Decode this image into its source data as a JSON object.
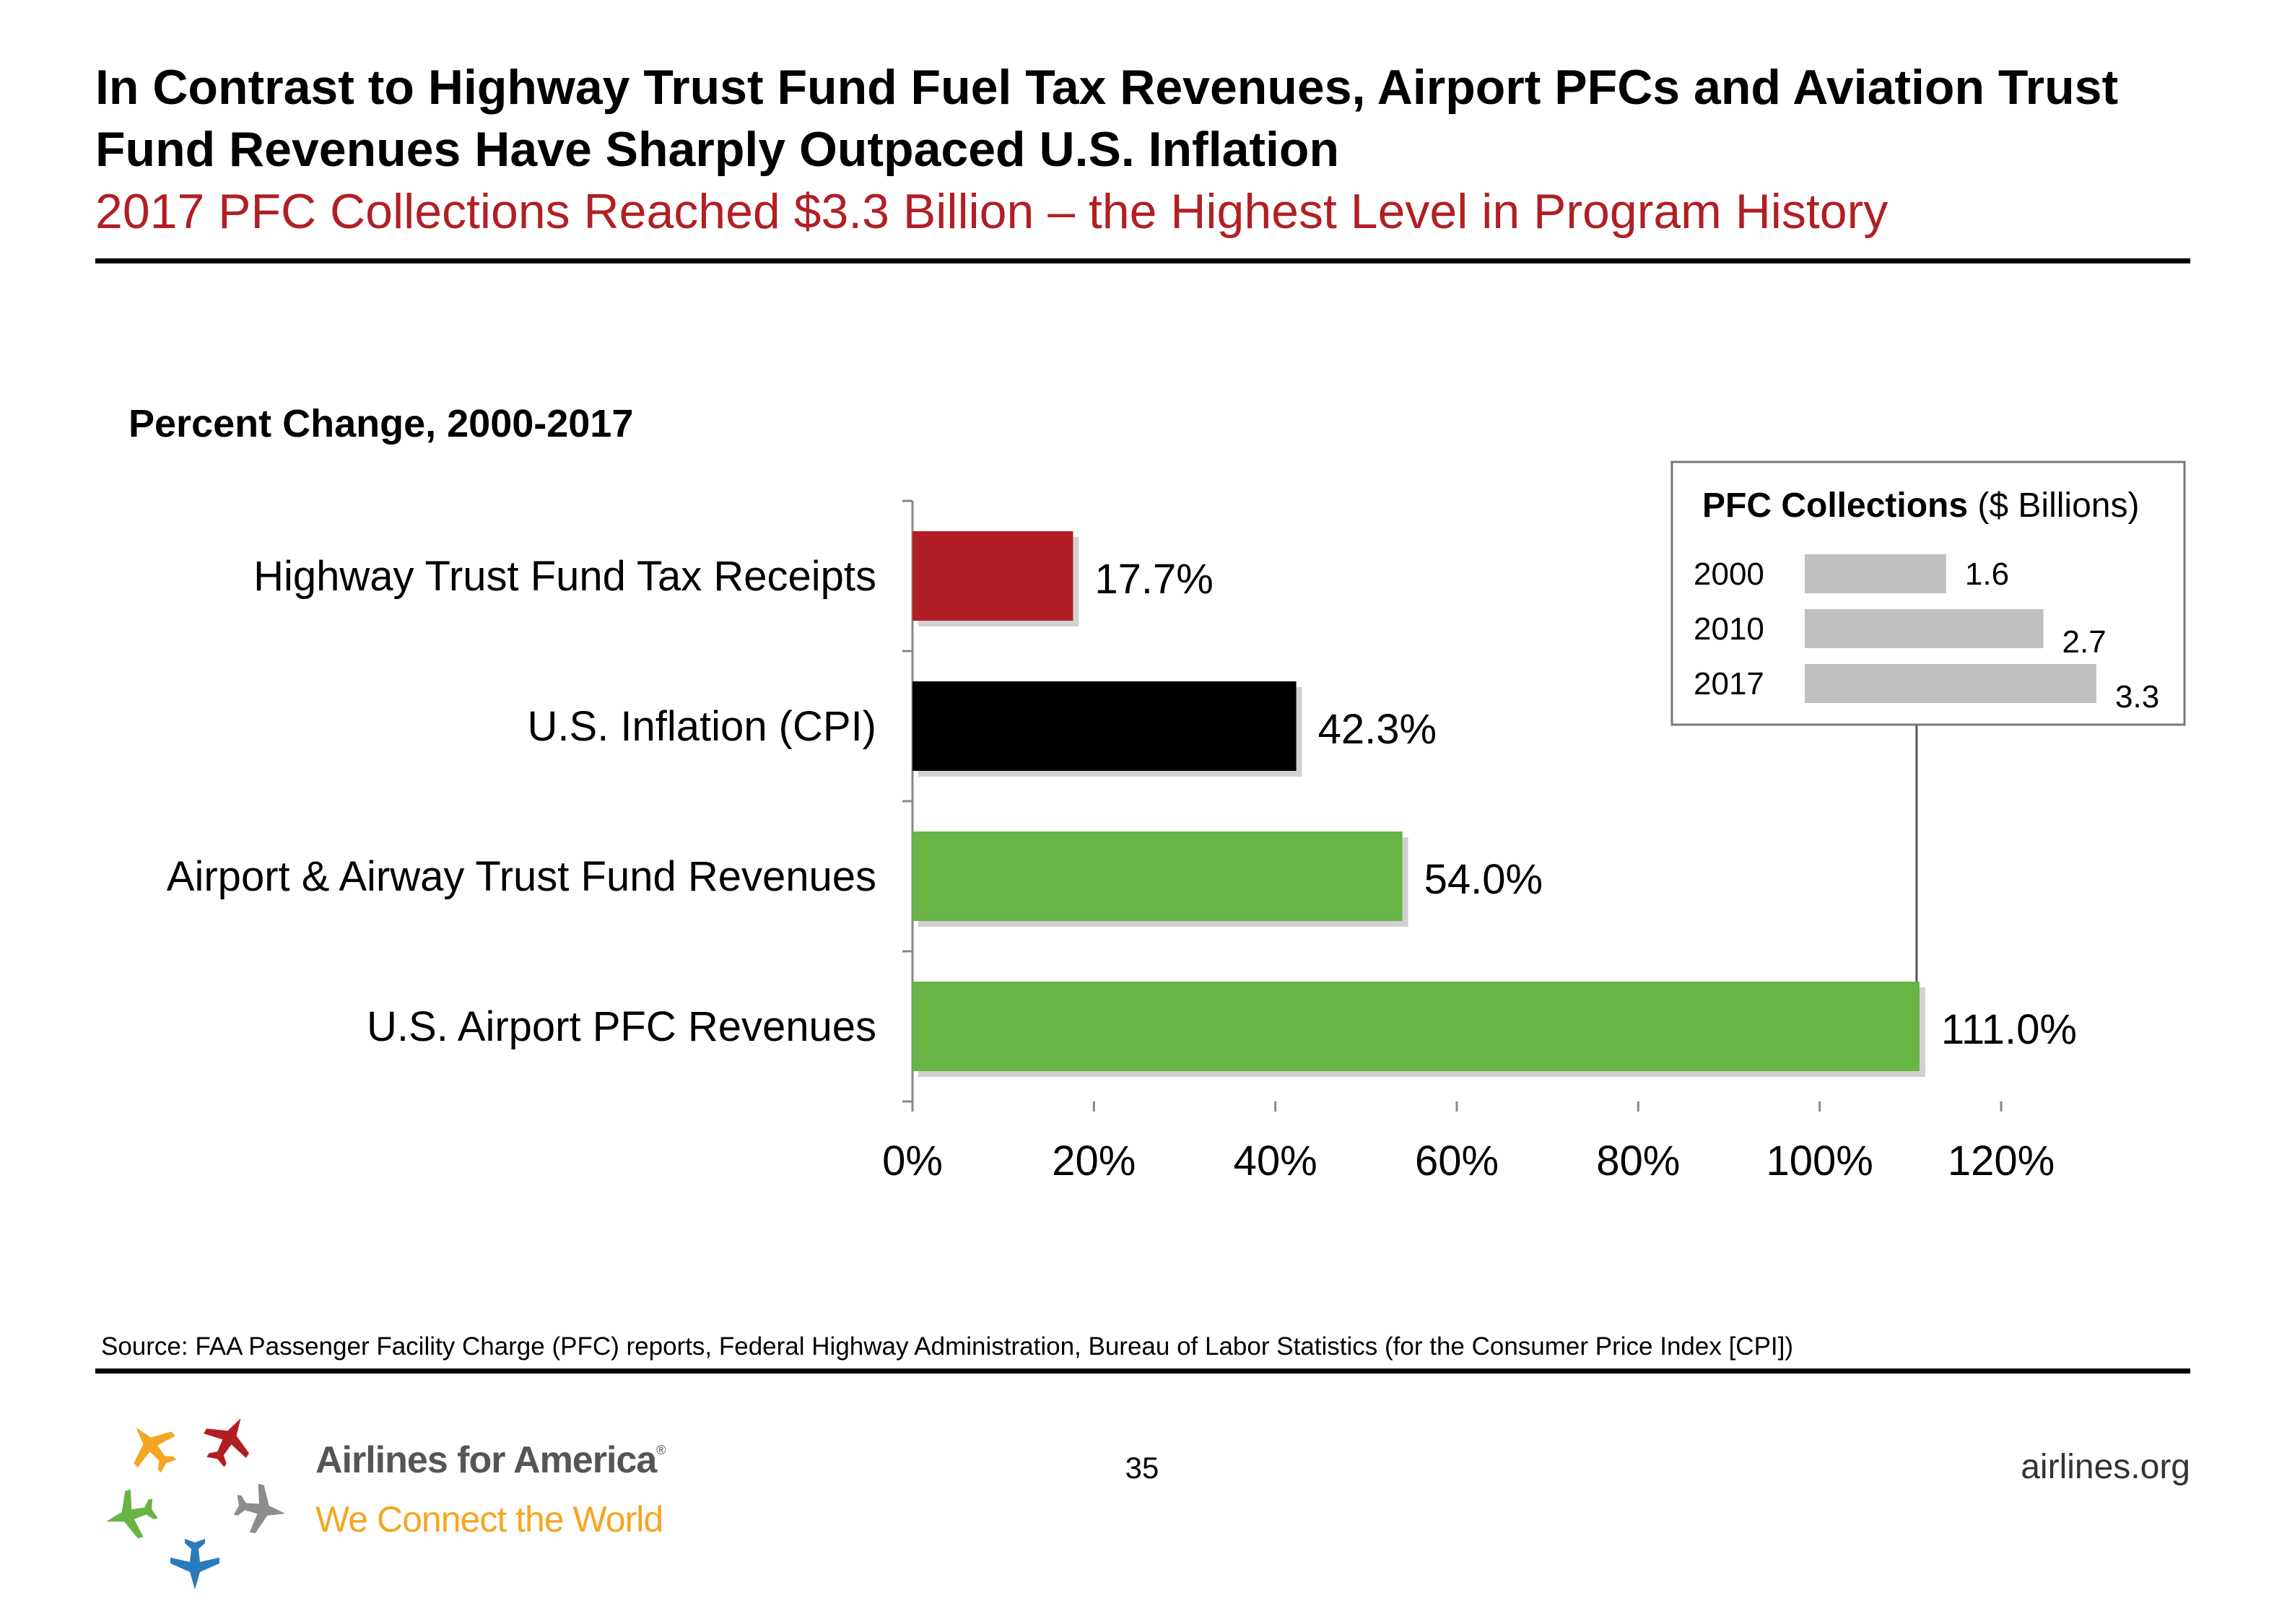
{
  "header": {
    "title": "In Contrast to Highway Trust Fund Fuel Tax Revenues, Airport PFCs and Aviation Trust Fund Revenues Have Sharply Outpaced U.S. Inflation",
    "subtitle": "2017 PFC Collections Reached $3.3 Billion – the Highest Level in Program History"
  },
  "panel_title": "Percent Change, 2000-2017",
  "chart_data": [
    {
      "type": "bar",
      "orientation": "horizontal",
      "title": "Percent Change, 2000-2017",
      "categories": [
        "Highway Trust Fund Tax Receipts",
        "U.S. Inflation (CPI)",
        "Airport & Airway Trust Fund Revenues",
        "U.S. Airport PFC Revenues"
      ],
      "values": [
        17.7,
        42.3,
        54.0,
        111.0
      ],
      "value_labels": [
        "17.7%",
        "42.3%",
        "54.0%",
        "111.0%"
      ],
      "colors": [
        "#b11f24",
        "#000000",
        "#68b445",
        "#68b445"
      ],
      "xlim": [
        0,
        120
      ],
      "xticks": [
        0,
        20,
        40,
        60,
        80,
        100,
        120
      ],
      "xtick_labels": [
        "0%",
        "20%",
        "40%",
        "60%",
        "80%",
        "100%",
        "120%"
      ],
      "grid": false
    },
    {
      "type": "bar",
      "orientation": "horizontal",
      "title_bold": "PFC Collections",
      "title_rest": " ($ Billions)",
      "categories": [
        "2000",
        "2010",
        "2017"
      ],
      "values": [
        1.6,
        2.7,
        3.3
      ],
      "value_labels": [
        "1.6",
        "2.7",
        "3.3"
      ],
      "color": "#c0c0c0",
      "xlim": [
        0,
        3.3
      ],
      "placement": "inset top-right, connected to the U.S. Airport PFC Revenues bar"
    }
  ],
  "footer": {
    "source": "Source: FAA Passenger Facility Charge (PFC) reports, Federal Highway Administration, Bureau of Labor Statistics (for the Consumer Price Index [CPI])",
    "page_number": "35",
    "site": "airlines.org",
    "brand_name": "Airlines for America",
    "brand_mark": "®",
    "brand_tagline": "We Connect the World"
  },
  "colors": {
    "accent_red": "#b11f24",
    "green": "#68b445",
    "gray_bar": "#c0c0c0",
    "logo_orange": "#f4a623",
    "logo_blue": "#2a7bbd",
    "logo_gray": "#8c8c8c"
  }
}
